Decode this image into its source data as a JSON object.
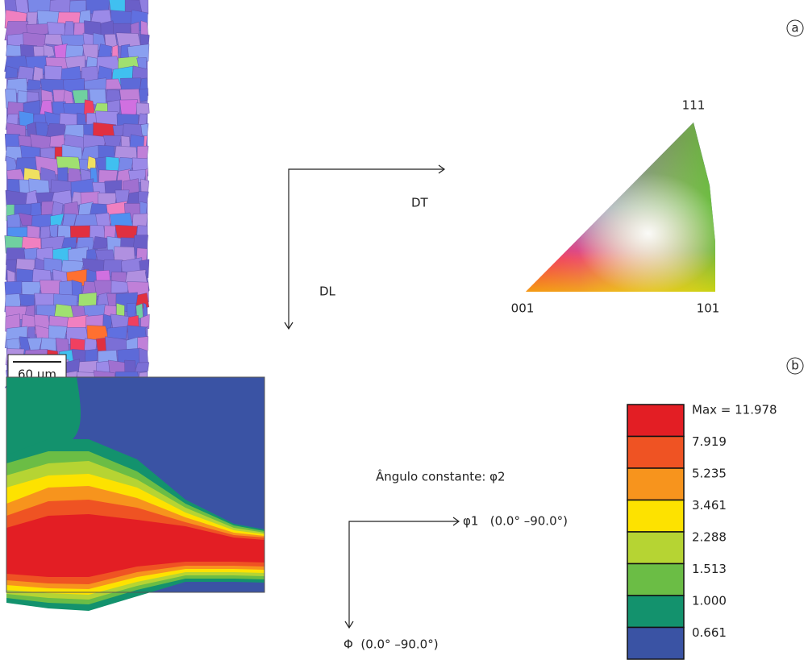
{
  "panel_labels": [
    "a",
    "b"
  ],
  "scale_bar": "60 µm",
  "map_axes": {
    "horizontal": "DT",
    "vertical": "DL"
  },
  "ipf_triangle": {
    "top": "111",
    "left": "001",
    "right": "101"
  },
  "odf": {
    "caption": "Ângulo constante: φ2",
    "horizontal": "φ1   (0.0° –90.0°)",
    "vertical": "Φ  (0.0° –90.0°)"
  },
  "legend": {
    "levels": [
      {
        "label": "Max = 11.978",
        "color": "#e31e24"
      },
      {
        "label": "7.919",
        "color": "#ef5323"
      },
      {
        "label": "5.235",
        "color": "#f7941d"
      },
      {
        "label": "3.461",
        "color": "#fde200"
      },
      {
        "label": "2.288",
        "color": "#b6d433"
      },
      {
        "label": "1.513",
        "color": "#6bbd45"
      },
      {
        "label": "1.000",
        "color": "#13926d"
      },
      {
        "label": "0.661",
        "color": "#3a53a4"
      }
    ]
  }
}
